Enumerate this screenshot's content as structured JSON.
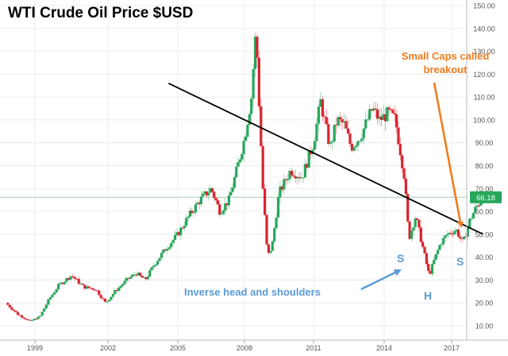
{
  "chart_data": {
    "type": "candlestick",
    "title": "WTI Crude Oil Price $USD",
    "xlabel": "",
    "ylabel": "",
    "x_ticks": [
      "1999",
      "2002",
      "2005",
      "2008",
      "2011",
      "2014",
      "2017"
    ],
    "x_tick_years": [
      1999,
      2002,
      2005,
      2008,
      2011,
      2014,
      2017
    ],
    "x_range": [
      1997.8,
      2018.4
    ],
    "y_ticks": [
      10,
      20,
      30,
      40,
      50,
      60,
      70,
      80,
      90,
      100,
      110,
      120,
      130,
      140,
      150
    ],
    "ylim": [
      5,
      152
    ],
    "grid": true,
    "last_price_label": "66.18",
    "last_price": 66.18,
    "series": [
      {
        "x": [
          1997.8,
          1998.3,
          1998.8,
          1999.2,
          1999.6,
          2000.0,
          2000.5,
          2001.0,
          2001.5,
          2001.9,
          2002.3,
          2002.8,
          2003.2,
          2003.6,
          2004.0,
          2004.5,
          2005.0,
          2005.5,
          2006.0,
          2006.5,
          2006.9,
          2007.3,
          2007.7,
          2008.0,
          2008.3,
          2008.5,
          2008.6,
          2008.8,
          2009.0,
          2009.2,
          2009.5,
          2010.0,
          2010.5,
          2011.0,
          2011.3,
          2011.7,
          2012.0,
          2012.3,
          2012.6,
          2013.0,
          2013.5,
          2013.8,
          2014.2,
          2014.5,
          2014.9,
          2015.1,
          2015.4,
          2015.7,
          2016.0,
          2016.2,
          2016.5,
          2016.8,
          2017.2,
          2017.5,
          2017.8,
          2018.1,
          2018.4
        ],
        "y": [
          20,
          15,
          12,
          14,
          22,
          28,
          32,
          27,
          26,
          20,
          25,
          30,
          33,
          30,
          37,
          44,
          50,
          58,
          65,
          70,
          60,
          65,
          80,
          92,
          110,
          140,
          115,
          70,
          40,
          45,
          68,
          78,
          75,
          90,
          108,
          88,
          100,
          98,
          88,
          93,
          105,
          100,
          103,
          100,
          75,
          48,
          58,
          45,
          32,
          38,
          46,
          50,
          52,
          46,
          56,
          62,
          66
        ]
      }
    ],
    "annotations": [
      {
        "text": "Small Caps called breakout",
        "color": "#f07c1e"
      },
      {
        "text": "Inverse head and shoulders",
        "color": "#5b9bd5"
      },
      {
        "text": "S",
        "color": "#5b9bd5"
      },
      {
        "text": "H",
        "color": "#5b9bd5"
      },
      {
        "text": "S",
        "color": "#5b9bd5"
      }
    ],
    "trendline": {
      "x": [
        2004.6,
        2018.4
      ],
      "y": [
        116,
        50
      ]
    },
    "colors": {
      "up": "#26a65b",
      "down": "#d9232d",
      "trend": "#000000",
      "orange": "#f07c1e",
      "blue": "#5b9bd5",
      "grid": "#e9ecef",
      "price_box": "#26a65b"
    }
  }
}
